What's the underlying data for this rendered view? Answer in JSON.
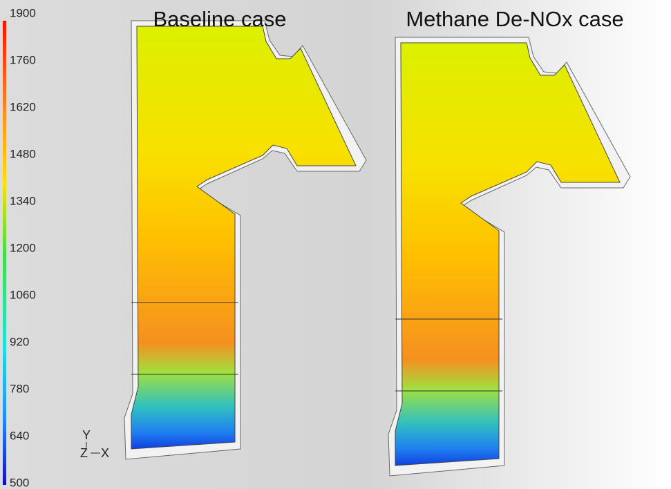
{
  "colorbar": {
    "labels": [
      1900,
      1760,
      1620,
      1480,
      1340,
      1200,
      1060,
      920,
      780,
      640,
      500
    ]
  },
  "panels": [
    {
      "title": "Baseline case"
    },
    {
      "title": "Methane De-NOx case"
    }
  ],
  "axes_triad": {
    "y": "Y",
    "z": "Z",
    "x": "X"
  }
}
